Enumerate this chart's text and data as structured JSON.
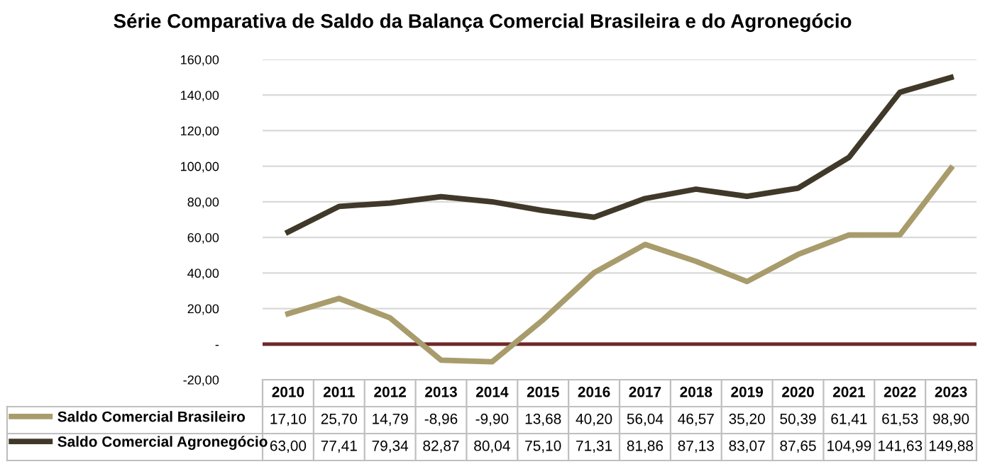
{
  "chart_data": {
    "type": "line",
    "title": "Série Comparativa de Saldo da Balança Comercial Brasileira e do Agronegócio",
    "categories": [
      "2010",
      "2011",
      "2012",
      "2013",
      "2014",
      "2015",
      "2016",
      "2017",
      "2018",
      "2019",
      "2020",
      "2021",
      "2022",
      "2023"
    ],
    "series": [
      {
        "name": "Saldo Comercial Brasileiro",
        "color": "#a89c6c",
        "values": [
          17.1,
          25.7,
          14.79,
          -8.96,
          -9.9,
          13.68,
          40.2,
          56.04,
          46.57,
          35.2,
          50.39,
          61.41,
          61.53,
          98.9
        ],
        "value_labels": [
          "17,10",
          "25,70",
          "14,79",
          "-8,96",
          "-9,90",
          "13,68",
          "40,20",
          "56,04",
          "46,57",
          "35,20",
          "50,39",
          "61,41",
          "61,53",
          "98,90"
        ]
      },
      {
        "name": "Saldo Comercial Agronegócio",
        "color": "#40392a",
        "values": [
          63.0,
          77.41,
          79.34,
          82.87,
          80.04,
          75.1,
          71.31,
          81.86,
          87.13,
          83.07,
          87.65,
          104.99,
          141.63,
          149.88
        ],
        "value_labels": [
          "63,00",
          "77,41",
          "79,34",
          "82,87",
          "80,04",
          "75,10",
          "71,31",
          "81,86",
          "87,13",
          "83,07",
          "87,65",
          "104,99",
          "141,63",
          "149,88"
        ]
      }
    ],
    "ylim": [
      -20,
      160
    ],
    "yticks": [
      {
        "value": -20,
        "label": "-20,00"
      },
      {
        "value": 0,
        "label": "-"
      },
      {
        "value": 20,
        "label": "20,00"
      },
      {
        "value": 40,
        "label": "40,00"
      },
      {
        "value": 60,
        "label": "60,00"
      },
      {
        "value": 80,
        "label": "80,00"
      },
      {
        "value": 100,
        "label": "100,00"
      },
      {
        "value": 120,
        "label": "120,00"
      },
      {
        "value": 140,
        "label": "140,00"
      },
      {
        "value": 160,
        "label": "160,00"
      }
    ],
    "grid": "y",
    "legend": "bottom",
    "marker": "none",
    "line_style": "solid",
    "ref_lines": [
      {
        "axis": "y",
        "value": 0,
        "color": "#6e2a2a"
      }
    ]
  }
}
